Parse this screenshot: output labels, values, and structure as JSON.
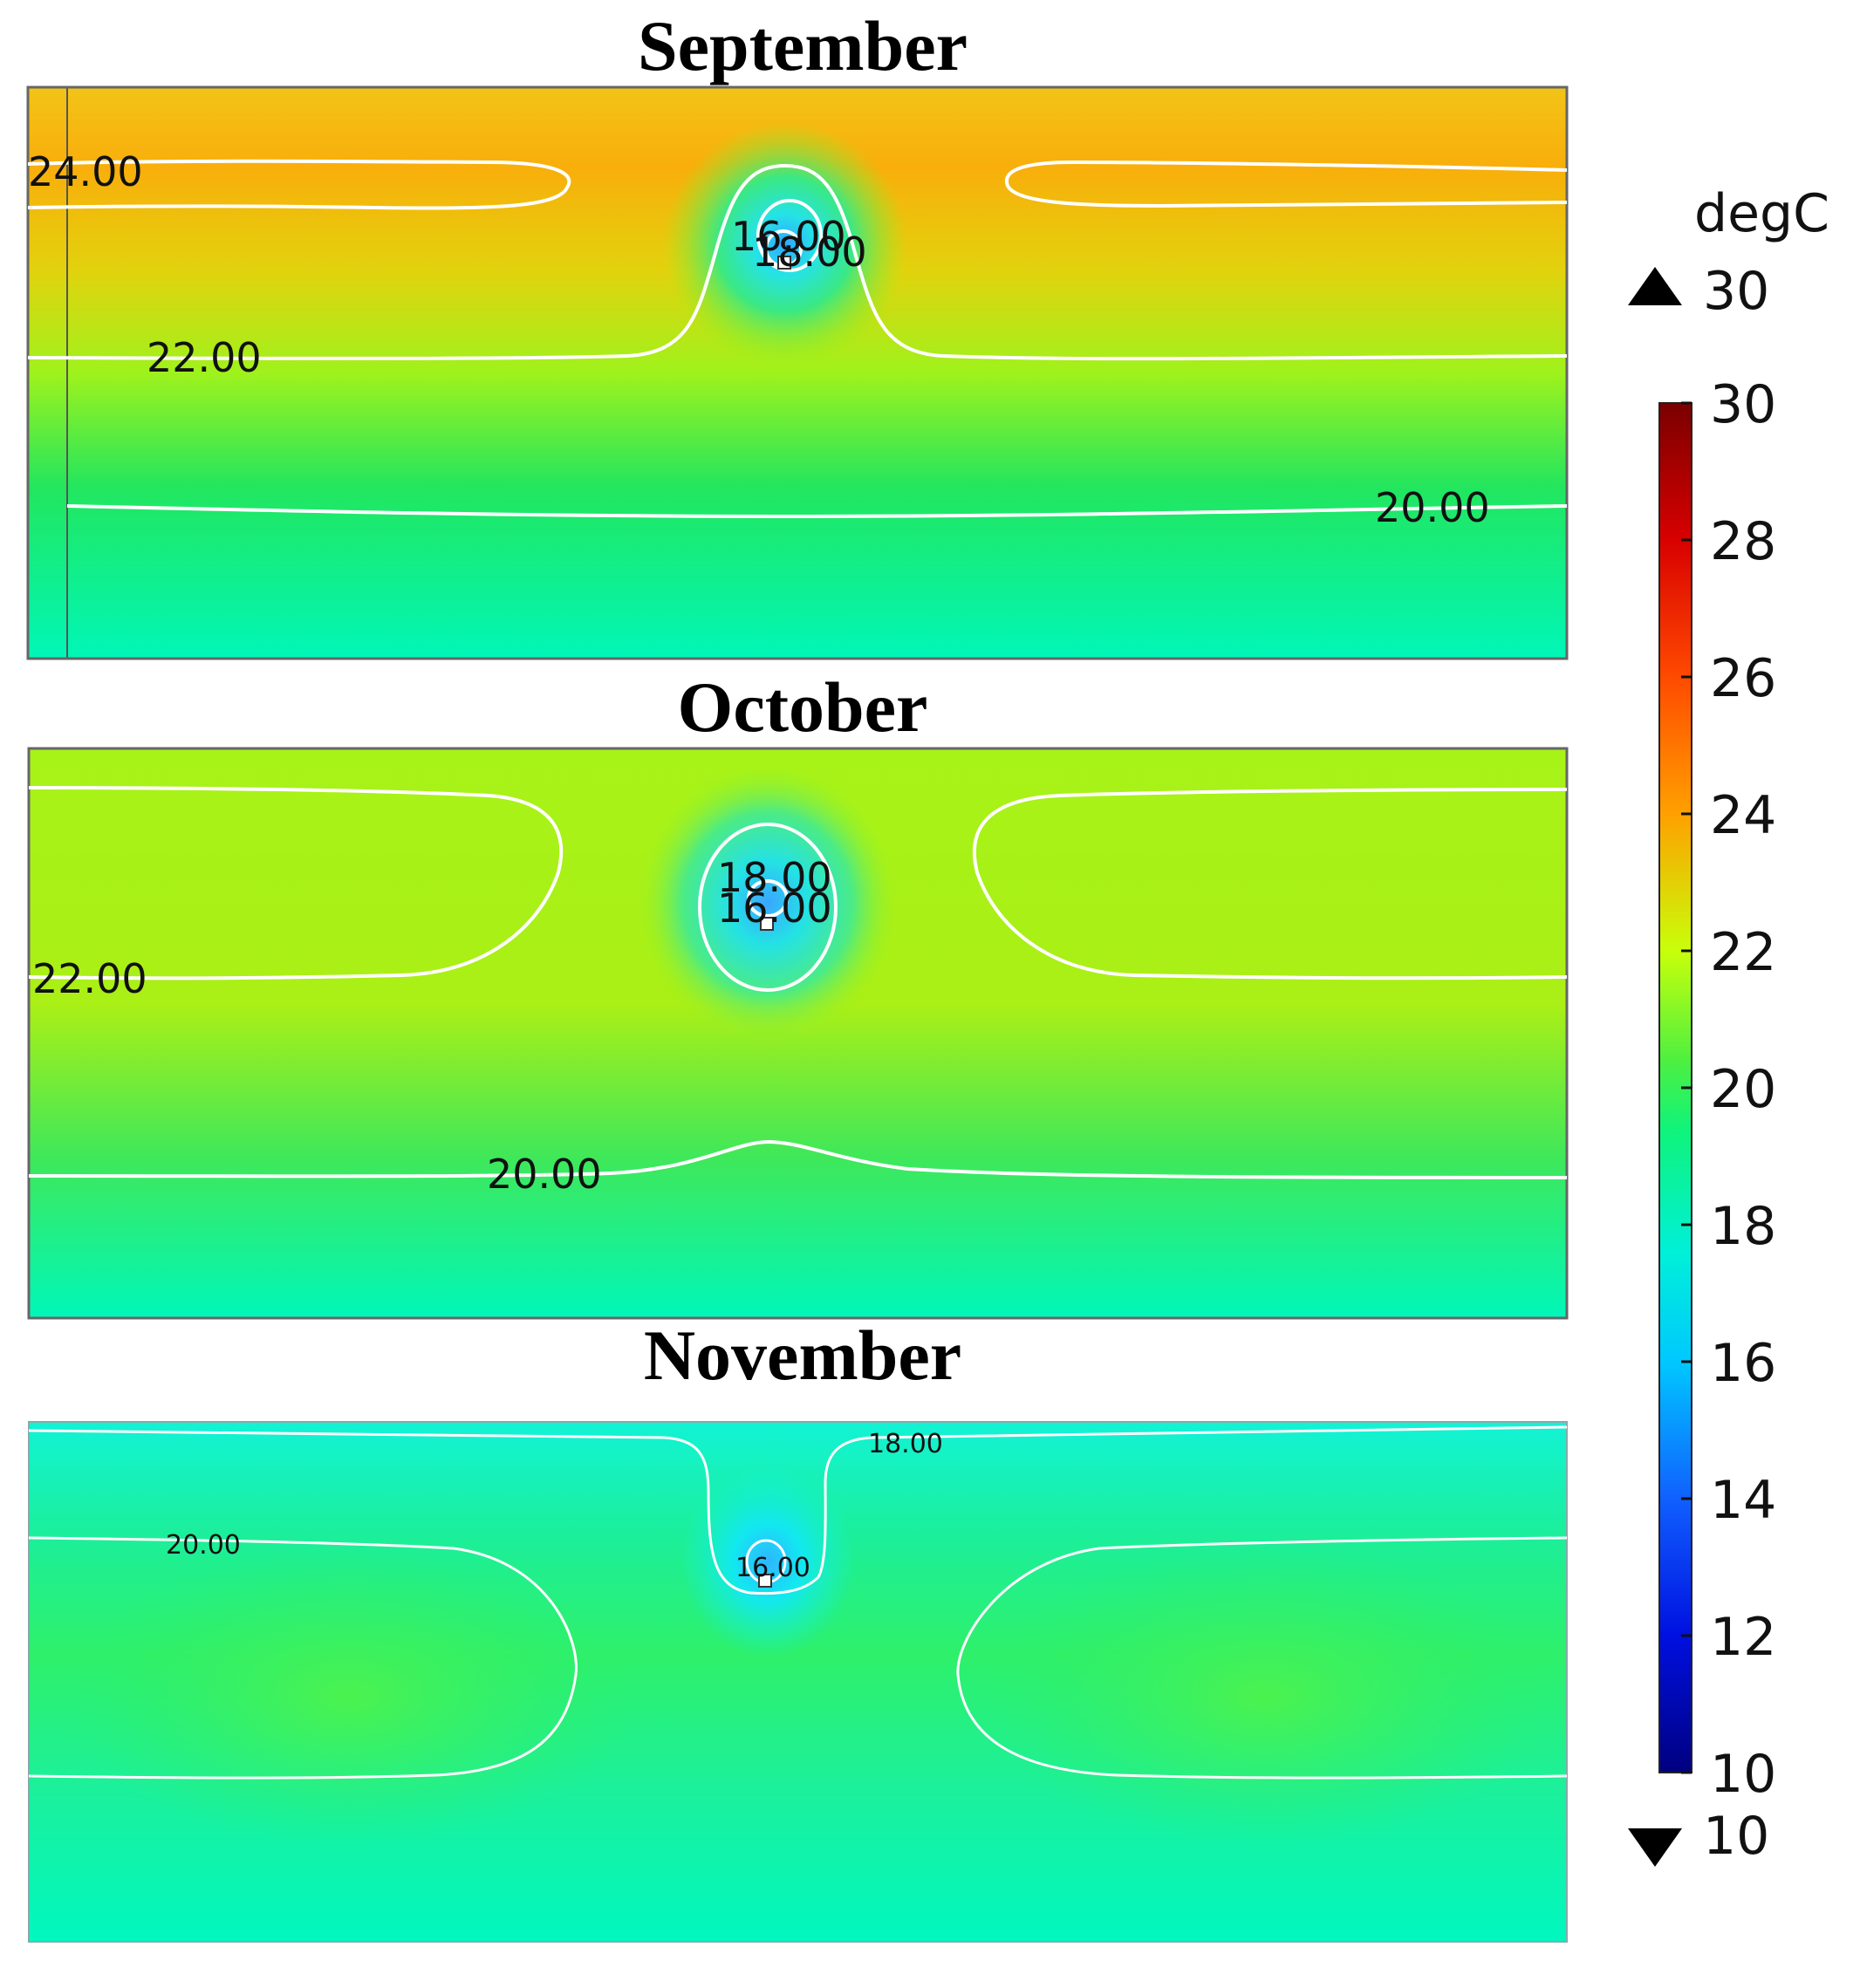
{
  "chart_data": {
    "type": "heatmap",
    "quantity": "Temperature",
    "unit": "degC",
    "panels": [
      {
        "title": "September",
        "contour_levels": [
          "24.00",
          "22.00",
          "20.00",
          "18.00",
          "16.00"
        ],
        "contour_labels": [
          "24.00",
          "22.00",
          "20.00",
          "16.00",
          "18.00"
        ]
      },
      {
        "title": "October",
        "contour_levels": [
          "22.00",
          "20.00",
          "18.00",
          "16.00"
        ],
        "contour_labels": [
          "22.00",
          "20.00",
          "18.00",
          "16.00"
        ]
      },
      {
        "title": "November",
        "contour_levels": [
          "20.00",
          "18.00",
          "16.00"
        ],
        "contour_labels": [
          "20.00",
          "18.00",
          "16.00"
        ]
      }
    ],
    "colorbar": {
      "label": "degC",
      "min": 10,
      "max": 30,
      "max_marker": "30",
      "min_marker": "10",
      "ticks": [
        "30",
        "28",
        "26",
        "24",
        "22",
        "20",
        "18",
        "16",
        "14",
        "12",
        "10"
      ]
    }
  }
}
